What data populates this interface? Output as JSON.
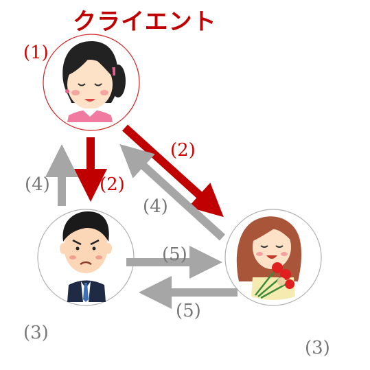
{
  "title": "クライエント",
  "labels": {
    "client_num": "(1)",
    "client_to_man": "(2)",
    "client_to_woman": "(2)",
    "man_to_client": "(4)",
    "woman_to_client": "(4)",
    "man_to_woman": "(5)",
    "woman_to_man": "(5)",
    "man_num": "(3)",
    "woman_num": "(3)"
  },
  "colors": {
    "red_arrow": "#c00000",
    "gray_arrow": "#a6a6a6",
    "client_circle": "#d42020",
    "other_circle": "#b0b0b0"
  },
  "nodes": {
    "client": "woman-with-ponytail-icon",
    "man": "businessman-icon",
    "woman": "woman-with-carnations-icon"
  }
}
